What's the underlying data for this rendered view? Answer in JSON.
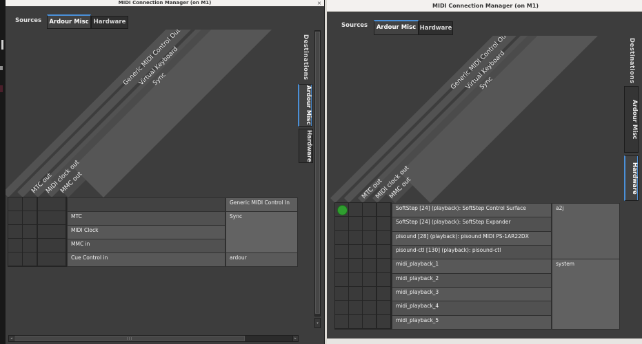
{
  "accent_color": "#4a90d9",
  "green_dot_color": "#2f9e2f",
  "windows": [
    {
      "title": "MIDI Connection Manager (on M1)",
      "close_label": "×",
      "sources_label": "Sources",
      "tabs": [
        {
          "label": "Ardour Misc",
          "selected": true
        },
        {
          "label": "Hardware",
          "selected": false
        }
      ],
      "destinations_label": "Destinations",
      "side_tabs": [
        {
          "label": "Ardour Misc",
          "selected": true
        },
        {
          "label": "Hardware",
          "selected": false
        }
      ],
      "column_labels_top": [
        "Generic MIDI Control Out",
        "Virtual Keyboard",
        "Sync"
      ],
      "column_labels_low": [
        "MTC out",
        "MIDI clock out",
        "MMC out"
      ],
      "matrix_columns": 4,
      "rows": [
        {
          "name": "",
          "group": "Generic MIDI Control In",
          "group_rows": 1,
          "empty_name": true
        },
        {
          "name": "MTC",
          "group": "Sync",
          "group_rows": 3
        },
        {
          "name": "MIDI Clock"
        },
        {
          "name": "MMC in"
        },
        {
          "name": "Cue Control in",
          "group": "ardour",
          "group_rows": 1
        }
      ],
      "h_scrollbar": {
        "left_arrow": "◂",
        "right_arrow": "▸"
      },
      "v_scrollbar": {
        "down_arrow": "▾"
      }
    },
    {
      "title": "MIDI Connection Manager (on M1)",
      "sources_label": "Sources",
      "tabs": [
        {
          "label": "Ardour Misc",
          "selected": true
        },
        {
          "label": "Hardware",
          "selected": false
        }
      ],
      "destinations_label": "Destinations",
      "side_tabs": [
        {
          "label": "Ardour Misc",
          "selected": false
        },
        {
          "label": "Hardware",
          "selected": true
        }
      ],
      "column_labels_top": [
        "Generic MIDI Control Out",
        "Virtual Keyboard",
        "Sync"
      ],
      "column_labels_low": [
        "MTC out",
        "MIDI clock out",
        "MMC out"
      ],
      "matrix_columns": 4,
      "rows": [
        {
          "name": "SoftStep [24] (playback): SoftStep Control Surface",
          "group": "a2j",
          "group_rows": 4,
          "connected_cols": [
            0
          ]
        },
        {
          "name": "SoftStep [24] (playback): SoftStep Expander"
        },
        {
          "name": "pisound [28] (playback): pisound MIDI PS-1AR22DX"
        },
        {
          "name": "pisound-ctl [130] (playback): pisound-ctl"
        },
        {
          "name": "midi_playback_1",
          "group": "system",
          "group_rows": 5
        },
        {
          "name": "midi_playback_2"
        },
        {
          "name": "midi_playback_3"
        },
        {
          "name": "midi_playback_4"
        },
        {
          "name": "midi_playback_5"
        }
      ]
    }
  ]
}
